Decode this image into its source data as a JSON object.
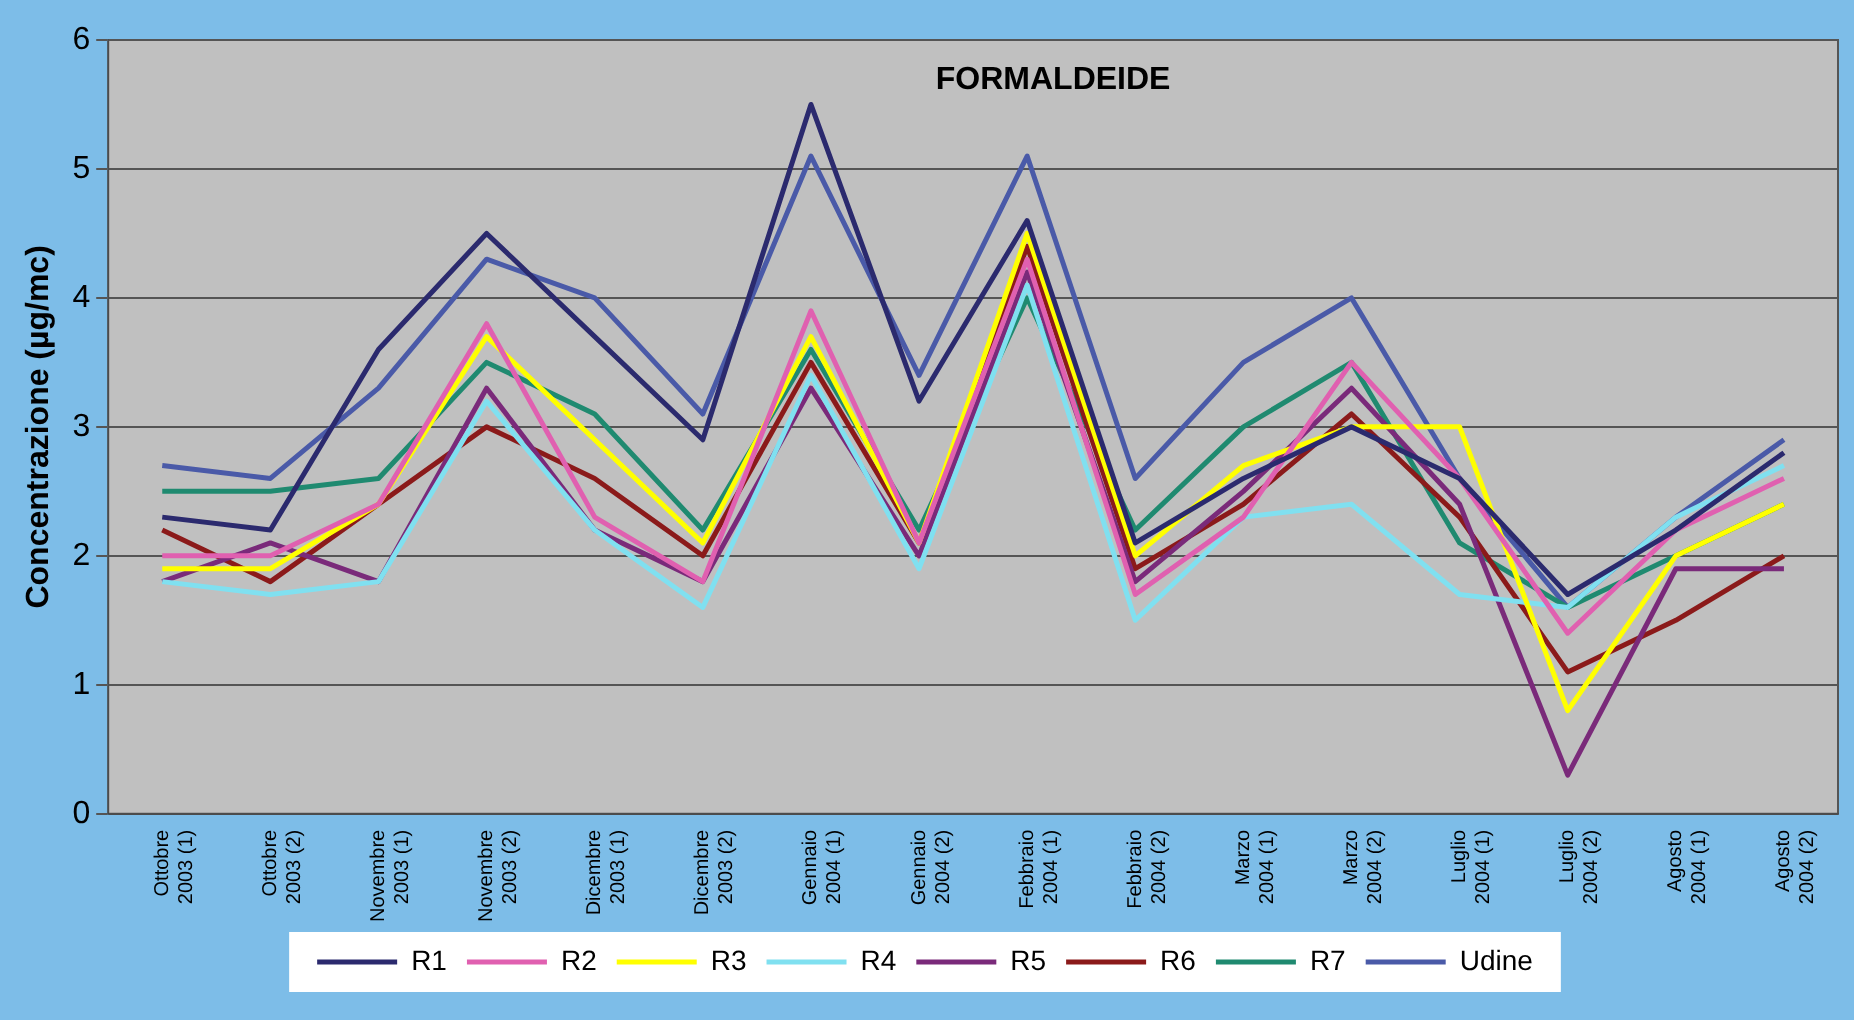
{
  "chart_data": {
    "type": "line",
    "title": "FORMALDEIDE",
    "ylabel": "Concentrazione (µg/mc)",
    "categories": [
      "Ottobre 2003 (1)",
      "Ottobre 2003 (2)",
      "Novembre 2003 (1)",
      "Novembre 2003 (2)",
      "Dicembre 2003 (1)",
      "Dicembre 2003 (2)",
      "Gennaio 2004 (1)",
      "Gennaio 2004 (2)",
      "Febbraio 2004 (1)",
      "Febbraio 2004 (2)",
      "Marzo 2004 (1)",
      "Marzo 2004 (2)",
      "Luglio 2004 (1)",
      "Luglio 2004 (2)",
      "Agosto 2004 (1)",
      "Agosto 2004 (2)"
    ],
    "series": [
      {
        "name": "R1",
        "color": "#2b2a6e",
        "values": [
          2.3,
          2.2,
          3.6,
          4.5,
          3.7,
          2.9,
          5.5,
          3.2,
          4.6,
          2.1,
          2.6,
          3.0,
          2.6,
          1.7,
          2.2,
          2.8
        ]
      },
      {
        "name": "R2",
        "color": "#e060b0",
        "values": [
          2.0,
          2.0,
          2.4,
          3.8,
          2.3,
          1.8,
          3.9,
          2.1,
          4.3,
          1.7,
          2.3,
          3.5,
          2.6,
          1.4,
          2.2,
          2.6
        ]
      },
      {
        "name": "R3",
        "color": "#ffff00",
        "values": [
          1.9,
          1.9,
          2.4,
          3.7,
          2.9,
          2.1,
          3.7,
          2.1,
          4.5,
          2.0,
          2.7,
          3.0,
          3.0,
          0.8,
          2.0,
          2.4
        ]
      },
      {
        "name": "R4",
        "color": "#80e0f0",
        "values": [
          1.8,
          1.7,
          1.8,
          3.2,
          2.2,
          1.6,
          3.4,
          1.9,
          4.1,
          1.5,
          2.3,
          2.4,
          1.7,
          1.6,
          2.3,
          2.7
        ]
      },
      {
        "name": "R5",
        "color": "#7a2a7a",
        "values": [
          1.8,
          2.1,
          1.8,
          3.3,
          2.2,
          1.8,
          3.3,
          2.0,
          4.2,
          1.8,
          2.5,
          3.3,
          2.4,
          0.3,
          1.9,
          1.9
        ]
      },
      {
        "name": "R6",
        "color": "#8b1a1a",
        "values": [
          2.2,
          1.8,
          2.4,
          3.0,
          2.6,
          2.0,
          3.5,
          2.1,
          4.4,
          1.9,
          2.4,
          3.1,
          2.3,
          1.1,
          1.5,
          2.0
        ]
      },
      {
        "name": "R7",
        "color": "#1f8a70",
        "values": [
          2.5,
          2.5,
          2.6,
          3.5,
          3.1,
          2.2,
          3.6,
          2.2,
          4.0,
          2.2,
          3.0,
          3.5,
          2.1,
          1.6,
          2.0,
          2.4
        ]
      },
      {
        "name": "Udine",
        "color": "#4a5aa8",
        "values": [
          2.7,
          2.6,
          3.3,
          4.3,
          4.0,
          3.1,
          5.1,
          3.4,
          5.1,
          2.6,
          3.5,
          4.0,
          2.6,
          1.6,
          2.3,
          2.9
        ]
      }
    ],
    "ylim": [
      0,
      6
    ],
    "yticks": [
      0,
      1,
      2,
      3,
      4,
      5,
      6
    ],
    "grid": "y",
    "legend": "bottom",
    "marker": "none",
    "line_style": "solid"
  }
}
